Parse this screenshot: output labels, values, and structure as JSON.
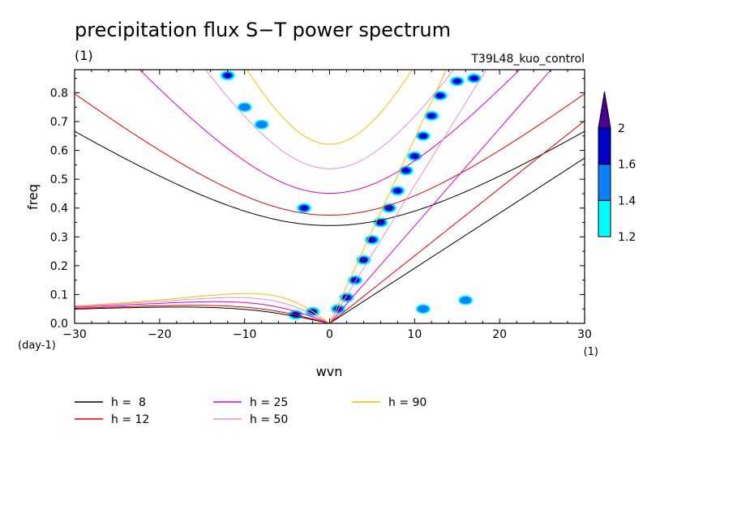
{
  "chart_data": {
    "type": "heatmap",
    "title": "precipitation flux S−T power spectrum",
    "subtitle_left": "(1)",
    "subtitle_right": "T39L48_kuo_control",
    "xlabel": "wvn",
    "ylabel": "freq",
    "x_unit_label": "(1)",
    "y_unit_label": "(day-1)",
    "xlim": [
      -30,
      30
    ],
    "ylim": [
      0,
      0.88
    ],
    "x_ticks": [
      -30,
      -20,
      -10,
      0,
      10,
      20,
      30
    ],
    "x_tick_labels": [
      "−30",
      "−20",
      "−10",
      "0",
      "10",
      "20",
      "30"
    ],
    "y_ticks": [
      0,
      0.1,
      0.2,
      0.3,
      0.4,
      0.5,
      0.6,
      0.7,
      0.8
    ],
    "y_tick_labels": [
      "0.0",
      "0.1",
      "0.2",
      "0.3",
      "0.4",
      "0.5",
      "0.6",
      "0.7",
      "0.8"
    ],
    "colorbar": {
      "levels": [
        1.2,
        1.4,
        1.6,
        2
      ],
      "labels": [
        "1.2",
        "1.4",
        "1.6",
        "2"
      ],
      "colors": [
        "#00ffff",
        "#0a80ff",
        "#0000c8",
        "#4b0096"
      ]
    },
    "dispersion_curves": [
      {
        "label": "h =  8",
        "h": 8,
        "color": "#000000"
      },
      {
        "label": "h = 12",
        "h": 12,
        "color": "#e00000"
      },
      {
        "label": "h = 25",
        "h": 25,
        "color": "#e000c0"
      },
      {
        "label": "h = 50",
        "h": 50,
        "color": "#e090e0"
      },
      {
        "label": "h = 90",
        "h": 90,
        "color": "#f0c000"
      }
    ],
    "spectral_peaks": [
      {
        "x": 1,
        "y": 0.05,
        "level": 2
      },
      {
        "x": 2,
        "y": 0.09,
        "level": 3
      },
      {
        "x": 3,
        "y": 0.15,
        "level": 3
      },
      {
        "x": 4,
        "y": 0.22,
        "level": 3
      },
      {
        "x": 5,
        "y": 0.29,
        "level": 3
      },
      {
        "x": 6,
        "y": 0.35,
        "level": 3
      },
      {
        "x": 7,
        "y": 0.4,
        "level": 3
      },
      {
        "x": 8,
        "y": 0.46,
        "level": 2
      },
      {
        "x": 9,
        "y": 0.53,
        "level": 2
      },
      {
        "x": 10,
        "y": 0.58,
        "level": 2
      },
      {
        "x": 11,
        "y": 0.65,
        "level": 2
      },
      {
        "x": 12,
        "y": 0.72,
        "level": 2
      },
      {
        "x": 13,
        "y": 0.79,
        "level": 2
      },
      {
        "x": 15,
        "y": 0.84,
        "level": 2
      },
      {
        "x": 17,
        "y": 0.85,
        "level": 2
      },
      {
        "x": -2,
        "y": 0.04,
        "level": 3
      },
      {
        "x": -4,
        "y": 0.03,
        "level": 2
      },
      {
        "x": -3,
        "y": 0.4,
        "level": 2
      },
      {
        "x": -12,
        "y": 0.86,
        "level": 2
      },
      {
        "x": -8,
        "y": 0.69,
        "level": 1
      },
      {
        "x": -10,
        "y": 0.75,
        "level": 1
      },
      {
        "x": 16,
        "y": 0.08,
        "level": 1
      },
      {
        "x": 11,
        "y": 0.05,
        "level": 1
      }
    ]
  }
}
